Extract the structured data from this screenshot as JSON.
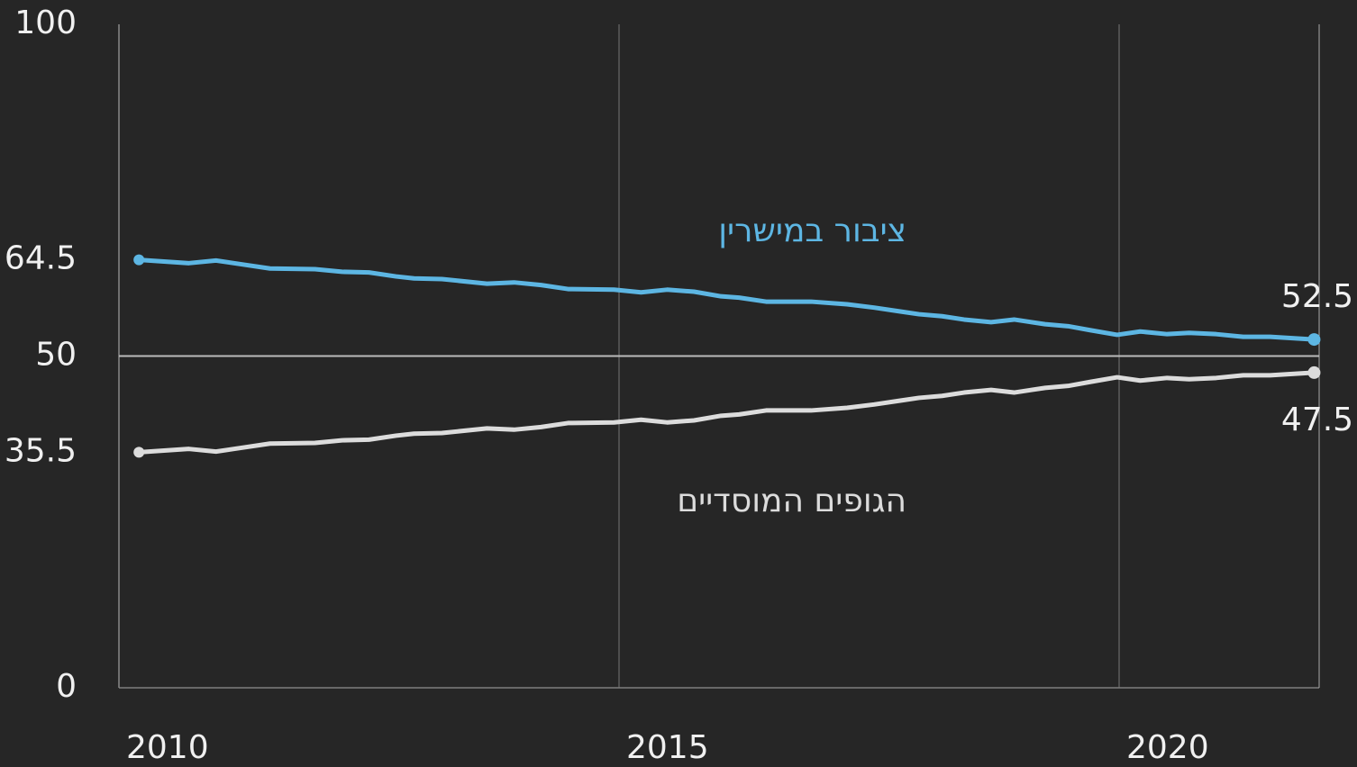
{
  "chart_data": {
    "type": "line",
    "x": [
      2010.2,
      2010.7,
      2010.97,
      2011.24,
      2011.51,
      2011.96,
      2012.23,
      2012.5,
      2012.77,
      2012.95,
      2013.23,
      2013.68,
      2013.95,
      2014.22,
      2014.49,
      2014.95,
      2015.22,
      2015.48,
      2015.75,
      2016.02,
      2016.2,
      2016.47,
      2016.92,
      2017.28,
      2017.55,
      2017.82,
      2018.0,
      2018.23,
      2018.45,
      2018.72,
      2018.95,
      2019.26,
      2019.49,
      2019.71,
      2019.98,
      2020.21,
      2020.48,
      2020.7,
      2020.97,
      2021.24,
      2021.51,
      2021.95
    ],
    "series": [
      {
        "name": "ציבור במישרין",
        "color": "#5db6e3",
        "values": [
          64.5,
          64.0,
          64.4,
          63.8,
          63.2,
          63.1,
          62.7,
          62.6,
          62.0,
          61.7,
          61.6,
          60.9,
          61.1,
          60.7,
          60.1,
          60.0,
          59.6,
          60.0,
          59.7,
          59.0,
          58.8,
          58.2,
          58.2,
          57.8,
          57.3,
          56.7,
          56.3,
          56.0,
          55.5,
          55.1,
          55.5,
          54.8,
          54.5,
          53.9,
          53.2,
          53.7,
          53.3,
          53.5,
          53.3,
          52.9,
          52.9,
          52.5
        ]
      },
      {
        "name": "הגופים המוסדיים",
        "color": "#dcdcdc",
        "values": [
          35.5,
          36.0,
          35.6,
          36.2,
          36.8,
          36.9,
          37.3,
          37.4,
          38.0,
          38.3,
          38.4,
          39.1,
          38.9,
          39.3,
          39.9,
          40.0,
          40.4,
          40.0,
          40.3,
          41.0,
          41.2,
          41.8,
          41.8,
          42.2,
          42.7,
          43.3,
          43.7,
          44.0,
          44.5,
          44.9,
          44.5,
          45.2,
          45.5,
          46.1,
          46.8,
          46.3,
          46.7,
          46.5,
          46.7,
          47.1,
          47.1,
          47.5
        ]
      }
    ],
    "xlim": [
      2010,
      2022
    ],
    "xticks": [
      2010,
      2015,
      2020
    ],
    "ylim": [
      0,
      100
    ],
    "yticks": [
      0,
      35.5,
      50,
      64.5,
      100
    ],
    "hline": 50
  }
}
